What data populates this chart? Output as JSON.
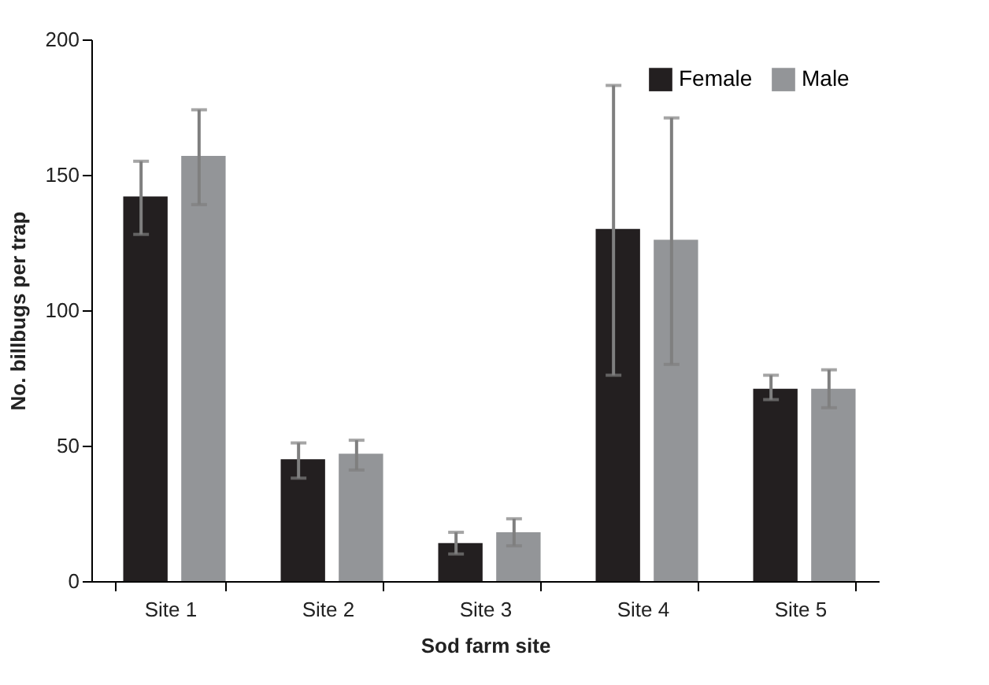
{
  "chart_data": {
    "type": "bar",
    "xlabel": "Sod farm site",
    "ylabel": "No. billbugs per trap",
    "categories": [
      "Site 1",
      "Site 2",
      "Site 3",
      "Site 4",
      "Site 5"
    ],
    "series": [
      {
        "name": "Female",
        "color": "#231f20",
        "values": [
          142,
          45,
          14,
          130,
          71
        ],
        "errors": [
          [
            128,
            155
          ],
          [
            38,
            51
          ],
          [
            10,
            18
          ],
          [
            76,
            183
          ],
          [
            67,
            76
          ]
        ]
      },
      {
        "name": "Male",
        "color": "#939598",
        "values": [
          157,
          47,
          18,
          126,
          71
        ],
        "errors": [
          [
            139,
            174
          ],
          [
            41,
            52
          ],
          [
            13,
            23
          ],
          [
            80,
            171
          ],
          [
            64,
            78
          ]
        ]
      }
    ],
    "ylim": [
      0,
      200
    ],
    "yticks": [
      0,
      50,
      100,
      150,
      200
    ],
    "grid": false,
    "legend": "top right"
  }
}
